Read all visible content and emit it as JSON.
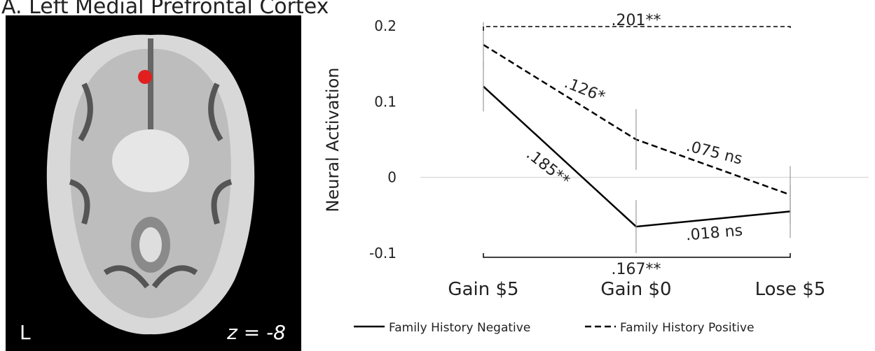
{
  "chart_data": {
    "type": "line",
    "title": "A. Left Medial Prefrontal Cortex",
    "brain_labels": {
      "hemisphere": "L",
      "slice": "z = -8"
    },
    "y_label": "Neural Activation",
    "categories": [
      "Gain $5",
      "Gain $0",
      "Lose $5"
    ],
    "ylim": [
      -0.1,
      0.2
    ],
    "yticks": [
      {
        "value": -0.1,
        "label": "-0.1"
      },
      0,
      {
        "value": 0.1,
        "label": "0.1"
      },
      {
        "value": 0.2,
        "label": "0.2"
      }
    ],
    "series": [
      {
        "name": "Family History Negative",
        "color": "#000000",
        "dash": "solid",
        "values": [
          0.12,
          -0.065,
          -0.045
        ],
        "errors": [
          0.033,
          0.035,
          0.035
        ]
      },
      {
        "name": "Family History Positive",
        "color": "#000000",
        "dash": "dashed",
        "values": [
          0.175,
          0.05,
          -0.023
        ],
        "errors": [
          0.03,
          0.04,
          0.038
        ]
      }
    ],
    "annotations": [
      ".201**",
      ".126*",
      ".075 ns",
      ".185**",
      ".018 ns",
      ".167**"
    ]
  }
}
